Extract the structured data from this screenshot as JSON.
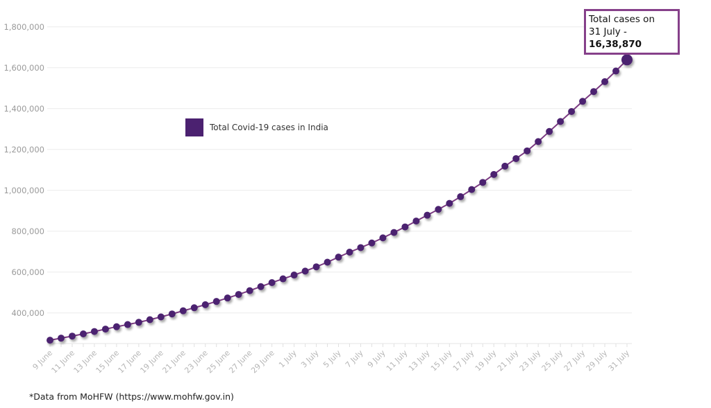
{
  "chart_data": {
    "type": "line",
    "title": "",
    "xlabel": "",
    "ylabel": "",
    "legend": {
      "label": "Total Covid-19 cases in India",
      "placement": "top-left"
    },
    "ylim": [
      250000,
      1800000
    ],
    "yticks": [
      400000,
      600000,
      800000,
      1000000,
      1200000,
      1400000,
      1600000,
      1800000
    ],
    "ytick_labels": [
      "400,000",
      "600,000",
      "800,000",
      "1,000,000",
      "1,200,000",
      "1,400,000",
      "1,600,000",
      "1,800,000"
    ],
    "grid": true,
    "colors": {
      "marker": "#4b2170",
      "line": "#7b3a82",
      "annotation_border": "#86408a"
    },
    "x": [
      "9 June",
      "10 June",
      "11 June",
      "12 June",
      "13 June",
      "14 June",
      "15 June",
      "16 June",
      "17 June",
      "18 June",
      "19 June",
      "20 June",
      "21 June",
      "22 June",
      "23 June",
      "24 June",
      "25 June",
      "26 June",
      "27 June",
      "28 June",
      "29 June",
      "30 June",
      "1 July",
      "2 July",
      "3 July",
      "4 July",
      "5 July",
      "6 July",
      "7 July",
      "8 July",
      "9 July",
      "10 July",
      "11 July",
      "12 July",
      "13 July",
      "14 July",
      "15 July",
      "16 July",
      "17 July",
      "18 July",
      "19 July",
      "20 July",
      "21 July",
      "22 July",
      "23 July",
      "24 July",
      "25 July",
      "26 July",
      "27 July",
      "28 July",
      "29 July",
      "30 July",
      "31 July"
    ],
    "values": [
      266598,
      276583,
      286579,
      297535,
      308993,
      320922,
      332424,
      343091,
      354065,
      366946,
      380532,
      395048,
      410461,
      425282,
      440215,
      456183,
      473105,
      490401,
      508953,
      528859,
      548318,
      566840,
      585493,
      604641,
      625544,
      648315,
      673165,
      697413,
      719665,
      742417,
      767296,
      793802,
      820916,
      849553,
      878254,
      906752,
      936181,
      968876,
      1003832,
      1038716,
      1077618,
      1118043,
      1155191,
      1192915,
      1238635,
      1287945,
      1336861,
      1385522,
      1435453,
      1483156,
      1531669,
      1583792,
      1638870
    ],
    "annotation": {
      "line1": "Total cases on",
      "line2_prefix": "31 July - ",
      "line2_value": "16,38,870"
    }
  },
  "footnote": "*Data from MoHFW (https://www.mohfw.gov.in)"
}
